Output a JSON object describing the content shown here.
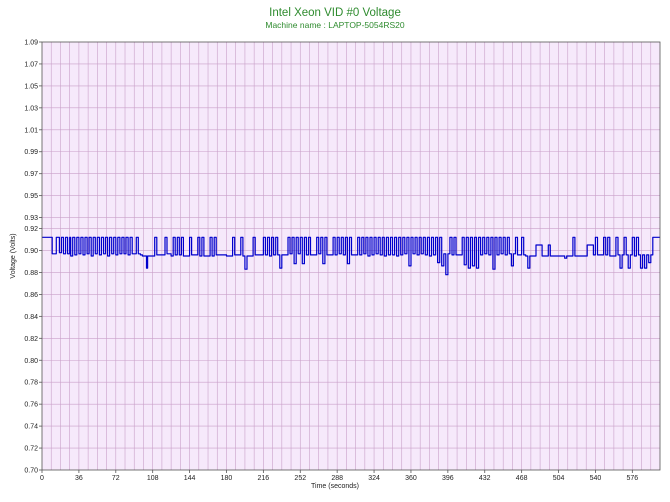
{
  "chart_data": {
    "type": "line",
    "title": "Intel Xeon VID #0 Voltage",
    "subtitle": "Machine name : LAPTOP-5054RS20",
    "xlabel": "Time (seconds)",
    "ylabel": "Voltage (Volts)",
    "xlim": [
      0,
      603
    ],
    "ylim": [
      0.7,
      1.09
    ],
    "x_ticks": [
      0,
      36,
      72,
      108,
      144,
      180,
      216,
      252,
      288,
      324,
      360,
      396,
      432,
      468,
      504,
      540,
      576
    ],
    "y_ticks": [
      0.7,
      0.72,
      0.74,
      0.76,
      0.78,
      0.8,
      0.82,
      0.84,
      0.86,
      0.88,
      0.9,
      0.92,
      0.93,
      0.95,
      0.97,
      0.99,
      1.01,
      1.03,
      1.05,
      1.07,
      1.09
    ],
    "y_tick_labels": [
      "0.70",
      "0.72",
      "0.74",
      "0.76",
      "0.78",
      "0.80",
      "0.82",
      "0.84",
      "0.86",
      "0.88",
      "0.90",
      "0.92",
      "0.93",
      "0.95",
      "0.97",
      "0.99",
      "1.01",
      "1.03",
      "1.05",
      "1.07",
      "1.09"
    ],
    "grid": true,
    "colors": {
      "background": "#f6e9fb",
      "grid": "#c9a0c9",
      "line": "#0000cc",
      "title": "#2e8b2e"
    },
    "series": [
      {
        "values": [
          [
            0,
            0.912
          ],
          [
            10,
            0.912
          ],
          [
            10,
            0.897
          ],
          [
            14,
            0.897
          ],
          [
            14,
            0.912
          ],
          [
            17,
            0.898
          ],
          [
            19,
            0.912
          ],
          [
            21,
            0.897
          ],
          [
            23,
            0.912
          ],
          [
            25,
            0.897
          ],
          [
            27,
            0.912
          ],
          [
            28,
            0.895
          ],
          [
            30,
            0.912
          ],
          [
            32,
            0.896
          ],
          [
            34,
            0.912
          ],
          [
            36,
            0.897
          ],
          [
            38,
            0.912
          ],
          [
            40,
            0.896
          ],
          [
            42,
            0.912
          ],
          [
            44,
            0.897
          ],
          [
            46,
            0.912
          ],
          [
            48,
            0.895
          ],
          [
            50,
            0.912
          ],
          [
            52,
            0.897
          ],
          [
            54,
            0.912
          ],
          [
            56,
            0.896
          ],
          [
            58,
            0.912
          ],
          [
            60,
            0.897
          ],
          [
            62,
            0.912
          ],
          [
            64,
            0.895
          ],
          [
            66,
            0.912
          ],
          [
            68,
            0.897
          ],
          [
            70,
            0.912
          ],
          [
            72,
            0.896
          ],
          [
            74,
            0.912
          ],
          [
            76,
            0.897
          ],
          [
            78,
            0.912
          ],
          [
            80,
            0.897
          ],
          [
            82,
            0.912
          ],
          [
            84,
            0.896
          ],
          [
            86,
            0.912
          ],
          [
            88,
            0.897
          ],
          [
            90,
            0.897
          ],
          [
            92,
            0.912
          ],
          [
            94,
            0.897
          ],
          [
            96,
            0.896
          ],
          [
            98,
            0.895
          ],
          [
            100,
            0.895
          ],
          [
            102,
            0.884
          ],
          [
            103,
            0.895
          ],
          [
            108,
            0.895
          ],
          [
            110,
            0.912
          ],
          [
            112,
            0.896
          ],
          [
            118,
            0.896
          ],
          [
            120,
            0.912
          ],
          [
            122,
            0.897
          ],
          [
            126,
            0.895
          ],
          [
            128,
            0.912
          ],
          [
            130,
            0.896
          ],
          [
            132,
            0.912
          ],
          [
            134,
            0.896
          ],
          [
            136,
            0.912
          ],
          [
            138,
            0.895
          ],
          [
            142,
            0.895
          ],
          [
            144,
            0.912
          ],
          [
            146,
            0.896
          ],
          [
            150,
            0.896
          ],
          [
            152,
            0.912
          ],
          [
            154,
            0.895
          ],
          [
            156,
            0.912
          ],
          [
            158,
            0.895
          ],
          [
            162,
            0.895
          ],
          [
            164,
            0.912
          ],
          [
            166,
            0.895
          ],
          [
            168,
            0.912
          ],
          [
            170,
            0.896
          ],
          [
            180,
            0.895
          ],
          [
            184,
            0.895
          ],
          [
            186,
            0.912
          ],
          [
            188,
            0.896
          ],
          [
            192,
            0.896
          ],
          [
            194,
            0.912
          ],
          [
            196,
            0.895
          ],
          [
            198,
            0.883
          ],
          [
            200,
            0.895
          ],
          [
            204,
            0.895
          ],
          [
            206,
            0.912
          ],
          [
            208,
            0.896
          ],
          [
            214,
            0.896
          ],
          [
            216,
            0.912
          ],
          [
            218,
            0.896
          ],
          [
            220,
            0.912
          ],
          [
            222,
            0.895
          ],
          [
            224,
            0.912
          ],
          [
            226,
            0.896
          ],
          [
            228,
            0.912
          ],
          [
            230,
            0.896
          ],
          [
            232,
            0.884
          ],
          [
            234,
            0.896
          ],
          [
            238,
            0.896
          ],
          [
            240,
            0.912
          ],
          [
            242,
            0.897
          ],
          [
            244,
            0.912
          ],
          [
            246,
            0.888
          ],
          [
            248,
            0.912
          ],
          [
            250,
            0.897
          ],
          [
            252,
            0.912
          ],
          [
            254,
            0.888
          ],
          [
            256,
            0.912
          ],
          [
            258,
            0.896
          ],
          [
            260,
            0.912
          ],
          [
            262,
            0.896
          ],
          [
            266,
            0.896
          ],
          [
            268,
            0.912
          ],
          [
            270,
            0.897
          ],
          [
            272,
            0.912
          ],
          [
            274,
            0.888
          ],
          [
            276,
            0.912
          ],
          [
            278,
            0.896
          ],
          [
            282,
            0.896
          ],
          [
            284,
            0.912
          ],
          [
            286,
            0.896
          ],
          [
            288,
            0.912
          ],
          [
            290,
            0.897
          ],
          [
            292,
            0.912
          ],
          [
            294,
            0.896
          ],
          [
            296,
            0.912
          ],
          [
            298,
            0.888
          ],
          [
            300,
            0.912
          ],
          [
            302,
            0.896
          ],
          [
            306,
            0.896
          ],
          [
            308,
            0.912
          ],
          [
            310,
            0.896
          ],
          [
            312,
            0.912
          ],
          [
            314,
            0.897
          ],
          [
            316,
            0.912
          ],
          [
            318,
            0.895
          ],
          [
            320,
            0.912
          ],
          [
            322,
            0.896
          ],
          [
            324,
            0.912
          ],
          [
            326,
            0.897
          ],
          [
            328,
            0.912
          ],
          [
            330,
            0.896
          ],
          [
            332,
            0.912
          ],
          [
            334,
            0.895
          ],
          [
            336,
            0.912
          ],
          [
            338,
            0.896
          ],
          [
            340,
            0.912
          ],
          [
            342,
            0.896
          ],
          [
            344,
            0.912
          ],
          [
            346,
            0.895
          ],
          [
            348,
            0.912
          ],
          [
            350,
            0.896
          ],
          [
            352,
            0.912
          ],
          [
            354,
            0.897
          ],
          [
            356,
            0.912
          ],
          [
            358,
            0.886
          ],
          [
            360,
            0.912
          ],
          [
            362,
            0.897
          ],
          [
            364,
            0.912
          ],
          [
            366,
            0.896
          ],
          [
            368,
            0.912
          ],
          [
            370,
            0.897
          ],
          [
            372,
            0.912
          ],
          [
            374,
            0.896
          ],
          [
            376,
            0.912
          ],
          [
            378,
            0.895
          ],
          [
            380,
            0.912
          ],
          [
            382,
            0.896
          ],
          [
            384,
            0.912
          ],
          [
            386,
            0.889
          ],
          [
            388,
            0.912
          ],
          [
            390,
            0.886
          ],
          [
            392,
            0.897
          ],
          [
            394,
            0.878
          ],
          [
            396,
            0.897
          ],
          [
            398,
            0.912
          ],
          [
            400,
            0.896
          ],
          [
            402,
            0.912
          ],
          [
            404,
            0.896
          ],
          [
            408,
            0.896
          ],
          [
            410,
            0.912
          ],
          [
            412,
            0.887
          ],
          [
            414,
            0.912
          ],
          [
            416,
            0.884
          ],
          [
            418,
            0.912
          ],
          [
            420,
            0.886
          ],
          [
            422,
            0.912
          ],
          [
            424,
            0.884
          ],
          [
            426,
            0.912
          ],
          [
            428,
            0.896
          ],
          [
            430,
            0.912
          ],
          [
            432,
            0.897
          ],
          [
            434,
            0.912
          ],
          [
            436,
            0.896
          ],
          [
            438,
            0.912
          ],
          [
            440,
            0.883
          ],
          [
            442,
            0.912
          ],
          [
            444,
            0.896
          ],
          [
            446,
            0.912
          ],
          [
            448,
            0.897
          ],
          [
            450,
            0.912
          ],
          [
            452,
            0.896
          ],
          [
            454,
            0.912
          ],
          [
            456,
            0.897
          ],
          [
            458,
            0.886
          ],
          [
            460,
            0.897
          ],
          [
            462,
            0.912
          ],
          [
            464,
            0.896
          ],
          [
            466,
            0.896
          ],
          [
            468,
            0.912
          ],
          [
            470,
            0.896
          ],
          [
            472,
            0.895
          ],
          [
            474,
            0.884
          ],
          [
            476,
            0.895
          ],
          [
            480,
            0.895
          ],
          [
            482,
            0.905
          ],
          [
            486,
            0.905
          ],
          [
            488,
            0.895
          ],
          [
            492,
            0.895
          ],
          [
            494,
            0.905
          ],
          [
            496,
            0.895
          ],
          [
            504,
            0.895
          ],
          [
            508,
            0.895
          ],
          [
            510,
            0.893
          ],
          [
            512,
            0.895
          ],
          [
            516,
            0.895
          ],
          [
            518,
            0.912
          ],
          [
            520,
            0.895
          ],
          [
            530,
            0.895
          ],
          [
            532,
            0.905
          ],
          [
            536,
            0.905
          ],
          [
            538,
            0.896
          ],
          [
            540,
            0.912
          ],
          [
            542,
            0.896
          ],
          [
            546,
            0.896
          ],
          [
            548,
            0.912
          ],
          [
            550,
            0.896
          ],
          [
            552,
            0.912
          ],
          [
            554,
            0.895
          ],
          [
            558,
            0.895
          ],
          [
            560,
            0.912
          ],
          [
            562,
            0.896
          ],
          [
            564,
            0.884
          ],
          [
            566,
            0.896
          ],
          [
            568,
            0.912
          ],
          [
            570,
            0.896
          ],
          [
            572,
            0.884
          ],
          [
            574,
            0.896
          ],
          [
            576,
            0.912
          ],
          [
            578,
            0.895
          ],
          [
            580,
            0.912
          ],
          [
            582,
            0.896
          ],
          [
            584,
            0.884
          ],
          [
            586,
            0.896
          ],
          [
            588,
            0.884
          ],
          [
            590,
            0.896
          ],
          [
            592,
            0.889
          ],
          [
            594,
            0.896
          ],
          [
            596,
            0.912
          ],
          [
            600,
            0.912
          ],
          [
            603,
            0.912
          ]
        ]
      }
    ]
  }
}
